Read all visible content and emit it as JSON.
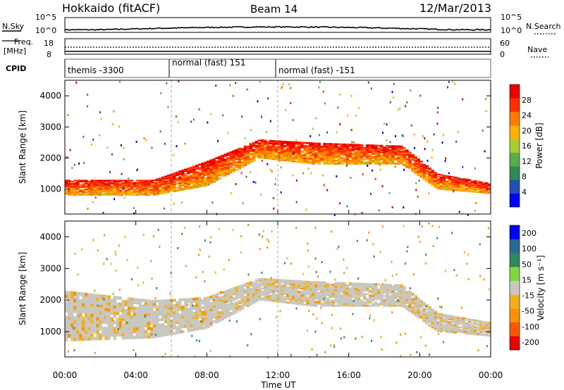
{
  "header": {
    "station": "Hokkaido (fitACF)",
    "beam": "Beam 14",
    "date": "12/Mar/2013"
  },
  "noise_panel": {
    "left_label": "N.Sky",
    "right_label": "N.Search",
    "left_ticks": [
      "10^5",
      "10^0"
    ],
    "right_ticks": [
      "10^5",
      "10^0"
    ]
  },
  "freq_panel": {
    "left_label_1": "Freq.",
    "left_label_2": "[MHz]",
    "right_label": "Nave",
    "left_ticks": [
      "18",
      "8"
    ],
    "right_ticks": [
      "60",
      "0"
    ]
  },
  "cpid": {
    "label": "CPID",
    "segments": [
      {
        "name": "themis -3300",
        "start_hour": 0
      },
      {
        "name": "normal (fast) 151",
        "start_hour": 6
      },
      {
        "name": "normal (fast) -151",
        "start_hour": 12
      }
    ]
  },
  "chart_data": [
    {
      "type": "heatmap",
      "name": "power",
      "ylabel": "Slant Range [km]",
      "ylim": [
        200,
        4500
      ],
      "yticks": [
        "4000",
        "3000",
        "2000",
        "1000"
      ],
      "colorbar": {
        "label": "Power [dB]",
        "ticks": [
          "28",
          "24",
          "20",
          "16",
          "12",
          "8",
          "4"
        ],
        "range": [
          0,
          32
        ]
      },
      "echo_band_lower_km": [
        {
          "hour": 0,
          "km": 800
        },
        {
          "hour": 5,
          "km": 800
        },
        {
          "hour": 8,
          "km": 1100
        },
        {
          "hour": 11,
          "km": 2000
        },
        {
          "hour": 14,
          "km": 1800
        },
        {
          "hour": 19,
          "km": 1800
        },
        {
          "hour": 21,
          "km": 1000
        },
        {
          "hour": 24,
          "km": 850
        }
      ],
      "echo_band_upper_km": [
        {
          "hour": 0,
          "km": 1300
        },
        {
          "hour": 5,
          "km": 1300
        },
        {
          "hour": 8,
          "km": 1900
        },
        {
          "hour": 11,
          "km": 2600
        },
        {
          "hour": 14,
          "km": 2500
        },
        {
          "hour": 19,
          "km": 2400
        },
        {
          "hour": 21,
          "km": 1500
        },
        {
          "hour": 24,
          "km": 1200
        }
      ]
    },
    {
      "type": "heatmap",
      "name": "velocity",
      "ylabel": "Slant Range [km]",
      "ylim": [
        200,
        4500
      ],
      "yticks": [
        "4000",
        "3000",
        "2000",
        "1000"
      ],
      "colorbar": {
        "label": "Velocity [m s⁻¹]",
        "ticks": [
          "200",
          "100",
          "50",
          "15",
          "-15",
          "-50",
          "-100",
          "-200"
        ],
        "range": [
          -250,
          250
        ]
      },
      "echo_band_lower_km": [
        {
          "hour": 0,
          "km": 700
        },
        {
          "hour": 5,
          "km": 800
        },
        {
          "hour": 8,
          "km": 1100
        },
        {
          "hour": 11,
          "km": 2000
        },
        {
          "hour": 14,
          "km": 1800
        },
        {
          "hour": 19,
          "km": 1800
        },
        {
          "hour": 21,
          "km": 1000
        },
        {
          "hour": 24,
          "km": 850
        }
      ],
      "echo_band_upper_km": [
        {
          "hour": 0,
          "km": 2300
        },
        {
          "hour": 5,
          "km": 2000
        },
        {
          "hour": 8,
          "km": 2100
        },
        {
          "hour": 11,
          "km": 2700
        },
        {
          "hour": 14,
          "km": 2600
        },
        {
          "hour": 19,
          "km": 2500
        },
        {
          "hour": 21,
          "km": 1600
        },
        {
          "hour": 24,
          "km": 1300
        }
      ]
    }
  ],
  "x_axis": {
    "label": "Time UT",
    "ticks": [
      "00:00",
      "04:00",
      "08:00",
      "12:00",
      "16:00",
      "20:00",
      "00:00"
    ],
    "xlim_hours": [
      0,
      24
    ]
  },
  "colors": {
    "power_scale": [
      "#0000ff",
      "#2050b0",
      "#2e8b57",
      "#56b04a",
      "#a6cc30",
      "#ffb000",
      "#ff7a00",
      "#ff3000",
      "#ee0000"
    ],
    "velocity_scale": [
      "#ee0000",
      "#ff5500",
      "#ff9000",
      "#f2b020",
      "#c8c8c0",
      "#80d840",
      "#2e8b57",
      "#2a6a90",
      "#0000ff"
    ]
  }
}
